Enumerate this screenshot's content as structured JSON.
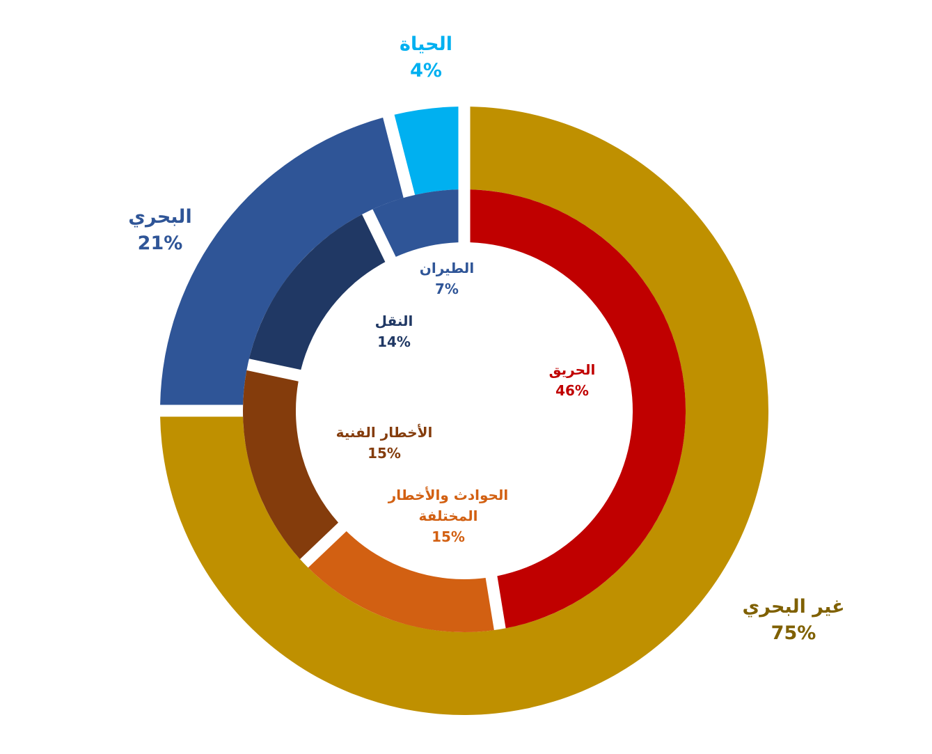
{
  "chart_data": {
    "type": "pie",
    "variant": "nested-donut",
    "rings": [
      {
        "ring": "outer",
        "slices": [
          {
            "label": "غير البحري",
            "value": 75,
            "value_label": "75%",
            "color": "#BF9000",
            "label_color": "#7F6000"
          },
          {
            "label": "البحري",
            "value": 21,
            "value_label": "21%",
            "color": "#2F5597",
            "label_color": "#2F5597"
          },
          {
            "label": "الحياة",
            "value": 4,
            "value_label": "4%",
            "color": "#00B0F0",
            "label_color": "#00B0F0"
          }
        ]
      },
      {
        "ring": "inner",
        "slices": [
          {
            "label": "الحريق",
            "value": 46,
            "value_label": "46%",
            "color": "#C00000",
            "label_color": "#C00000"
          },
          {
            "label": "الحوادث والأخطار المختلفة",
            "label_lines": [
              "الحوادث والأخطار",
              "المختلفة"
            ],
            "value": 15,
            "value_label": "15%",
            "color": "#D26012",
            "label_color": "#D26012"
          },
          {
            "label": "الأخطار الفنية",
            "value": 15,
            "value_label": "15%",
            "color": "#843C0C",
            "label_color": "#843C0C"
          },
          {
            "label": "النقل",
            "value": 14,
            "value_label": "14%",
            "color": "#203864",
            "label_color": "#203864"
          },
          {
            "label": "الطيران",
            "value": 7,
            "value_label": "7%",
            "color": "#2F5597",
            "label_color": "#2F5597"
          }
        ]
      }
    ],
    "legend": "none"
  }
}
